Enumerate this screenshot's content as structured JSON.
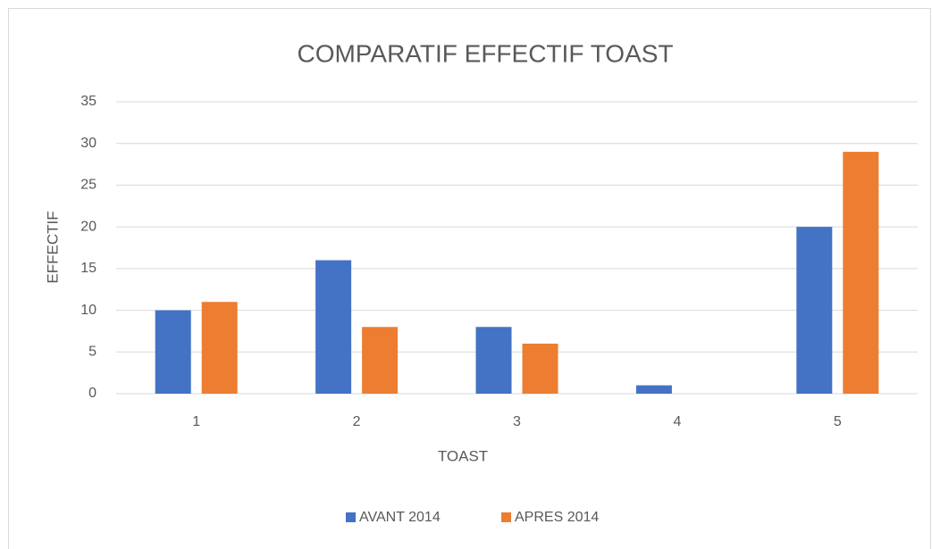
{
  "chart_data": {
    "type": "bar",
    "title": "COMPARATIF EFFECTIF TOAST",
    "xlabel": "TOAST",
    "ylabel": "EFFECTIF",
    "categories": [
      "1",
      "2",
      "3",
      "4",
      "5"
    ],
    "series": [
      {
        "name": "AVANT 2014",
        "color": "#4472c4",
        "values": [
          10,
          16,
          8,
          1,
          20
        ]
      },
      {
        "name": "APRES 2014",
        "color": "#ed7d31",
        "values": [
          11,
          8,
          6,
          0,
          29
        ]
      }
    ],
    "ylim": [
      0,
      35
    ],
    "yticks": [
      0,
      5,
      10,
      15,
      20,
      25,
      30,
      35
    ],
    "grid": true,
    "legend": "bottom"
  }
}
